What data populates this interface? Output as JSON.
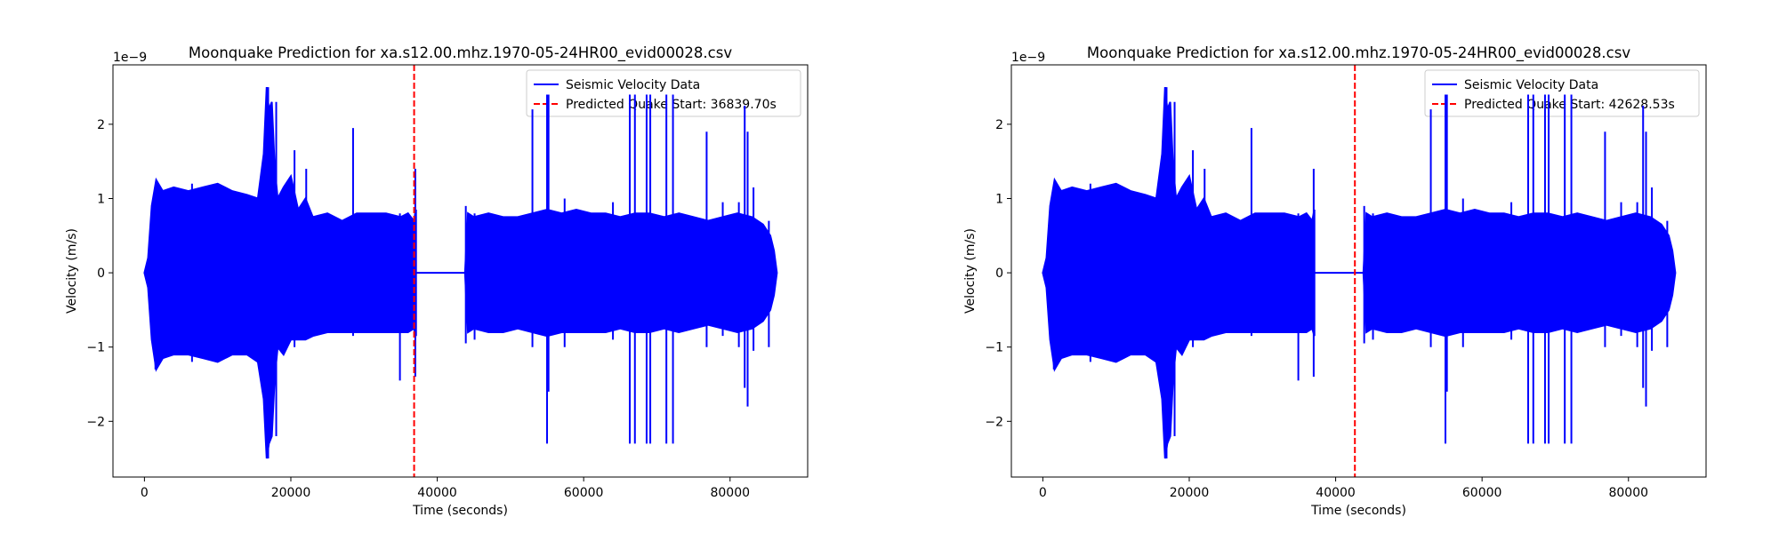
{
  "chart_data": [
    {
      "type": "line",
      "title": "Moonquake Prediction for xa.s12.00.mhz.1970-05-24HR00_evid00028.csv",
      "xlabel": "Time (seconds)",
      "ylabel": "Velocity (m/s)",
      "y_scale_offset": "1e−9",
      "xlim": [
        -4300,
        90600
      ],
      "ylim": [
        -2.75,
        2.8
      ],
      "xticks": [
        0,
        20000,
        40000,
        60000,
        80000
      ],
      "xtick_labels": [
        "0",
        "20000",
        "40000",
        "60000",
        "80000"
      ],
      "yticks": [
        -2,
        -1,
        0,
        1,
        2
      ],
      "ytick_labels": [
        "−2",
        "−1",
        "0",
        "1",
        "2"
      ],
      "grid": false,
      "legend_position": "top-right",
      "series": [
        {
          "name": "Seismic Velocity Data",
          "color": "#0000ff",
          "style": "solid",
          "envelope_segments": [
            {
              "x": [
                0,
                500,
                1000,
                1600,
                2500,
                4000,
                6000,
                8000,
                10000,
                12000,
                14000,
                15500,
                16300,
                16700,
                17000,
                17400,
                17800,
                18200,
                19000,
                20000,
                21000,
                22000,
                23000,
                25000,
                27000,
                29000,
                31000,
                33000,
                35000,
                36000,
                36800,
                37100
              ],
              "ymax": [
                0,
                0.2,
                0.9,
                1.25,
                1.1,
                1.15,
                1.1,
                1.15,
                1.2,
                1.1,
                1.05,
                1.0,
                1.6,
                2.5,
                2.2,
                2.3,
                1.4,
                1.0,
                1.15,
                1.3,
                0.85,
                1.0,
                0.75,
                0.8,
                0.7,
                0.8,
                0.8,
                0.8,
                0.75,
                0.8,
                0.7,
                0.85
              ],
              "ymin": [
                0,
                -0.2,
                -0.9,
                -1.3,
                -1.15,
                -1.1,
                -1.1,
                -1.15,
                -1.2,
                -1.1,
                -1.1,
                -1.2,
                -1.7,
                -2.5,
                -2.3,
                -2.2,
                -1.4,
                -1.0,
                -1.1,
                -0.9,
                -0.9,
                -0.9,
                -0.85,
                -0.8,
                -0.8,
                -0.8,
                -0.8,
                -0.8,
                -0.8,
                -0.8,
                -0.75,
                -0.85
              ]
            },
            {
              "x": [
                37100,
                43800
              ],
              "ymax": [
                0,
                0
              ],
              "ymin": [
                0,
                0
              ]
            },
            {
              "x": [
                43800,
                44200,
                45000,
                47000,
                49000,
                51000,
                53000,
                55000,
                57000,
                59000,
                61000,
                63000,
                65000,
                67000,
                69000,
                71000,
                73000,
                75000,
                77000,
                79000,
                81000,
                83000,
                84500,
                85500,
                86000,
                86400
              ],
              "ymax": [
                0,
                0.8,
                0.75,
                0.8,
                0.75,
                0.75,
                0.8,
                0.85,
                0.8,
                0.85,
                0.8,
                0.8,
                0.75,
                0.8,
                0.8,
                0.75,
                0.8,
                0.75,
                0.7,
                0.75,
                0.8,
                0.75,
                0.65,
                0.5,
                0.3,
                0
              ],
              "ymin": [
                0,
                -0.8,
                -0.75,
                -0.8,
                -0.8,
                -0.75,
                -0.8,
                -0.85,
                -0.8,
                -0.8,
                -0.8,
                -0.8,
                -0.75,
                -0.8,
                -0.8,
                -0.75,
                -0.8,
                -0.75,
                -0.7,
                -0.75,
                -0.8,
                -0.75,
                -0.65,
                -0.5,
                -0.3,
                0
              ]
            }
          ],
          "spikes": [
            {
              "x": 1500,
              "ymax": 0.75,
              "ymin": -1.3
            },
            {
              "x": 6500,
              "ymax": 1.2,
              "ymin": -1.2
            },
            {
              "x": 16900,
              "ymax": 2.5,
              "ymin": -2.5
            },
            {
              "x": 18000,
              "ymax": 2.3,
              "ymin": -2.2
            },
            {
              "x": 20500,
              "ymax": 1.65,
              "ymin": -1.0
            },
            {
              "x": 22100,
              "ymax": 1.4,
              "ymin": -0.9
            },
            {
              "x": 28500,
              "ymax": 1.95,
              "ymin": -0.85
            },
            {
              "x": 34900,
              "ymax": 0.8,
              "ymin": -1.45
            },
            {
              "x": 37000,
              "ymax": 1.4,
              "ymin": -1.4
            },
            {
              "x": 43900,
              "ymax": 0.9,
              "ymin": -0.95
            },
            {
              "x": 45100,
              "ymax": 0.8,
              "ymin": -0.9
            },
            {
              "x": 53000,
              "ymax": 2.2,
              "ymin": -1.0
            },
            {
              "x": 55000,
              "ymax": 2.4,
              "ymin": -2.3
            },
            {
              "x": 55200,
              "ymax": 2.4,
              "ymin": -1.6
            },
            {
              "x": 57400,
              "ymax": 1.0,
              "ymin": -1.0
            },
            {
              "x": 64000,
              "ymax": 0.95,
              "ymin": -0.9
            },
            {
              "x": 66300,
              "ymax": 2.4,
              "ymin": -2.3
            },
            {
              "x": 67000,
              "ymax": 2.4,
              "ymin": -2.3
            },
            {
              "x": 68600,
              "ymax": 2.4,
              "ymin": -2.3
            },
            {
              "x": 69100,
              "ymax": 2.4,
              "ymin": -2.3
            },
            {
              "x": 71300,
              "ymax": 2.4,
              "ymin": -2.3
            },
            {
              "x": 72200,
              "ymax": 2.4,
              "ymin": -2.3
            },
            {
              "x": 76800,
              "ymax": 1.9,
              "ymin": -1.0
            },
            {
              "x": 79000,
              "ymax": 0.95,
              "ymin": -0.85
            },
            {
              "x": 81200,
              "ymax": 0.95,
              "ymin": -1.0
            },
            {
              "x": 82000,
              "ymax": 2.25,
              "ymin": -1.55
            },
            {
              "x": 82400,
              "ymax": 1.9,
              "ymin": -1.8
            },
            {
              "x": 83200,
              "ymax": 1.15,
              "ymin": -1.05
            },
            {
              "x": 85300,
              "ymax": 0.7,
              "ymin": -1.0
            }
          ]
        },
        {
          "name": "Predicted Quake Start: 36839.70s",
          "color": "#ff0000",
          "style": "dashed",
          "vline_x": 36839.7
        }
      ]
    },
    {
      "type": "line",
      "title": "Moonquake Prediction for xa.s12.00.mhz.1970-05-24HR00_evid00028.csv",
      "xlabel": "Time (seconds)",
      "ylabel": "Velocity (m/s)",
      "y_scale_offset": "1e−9",
      "xlim": [
        -4300,
        90600
      ],
      "ylim": [
        -2.75,
        2.8
      ],
      "xticks": [
        0,
        20000,
        40000,
        60000,
        80000
      ],
      "xtick_labels": [
        "0",
        "20000",
        "40000",
        "60000",
        "80000"
      ],
      "yticks": [
        -2,
        -1,
        0,
        1,
        2
      ],
      "ytick_labels": [
        "−2",
        "−1",
        "0",
        "1",
        "2"
      ],
      "grid": false,
      "legend_position": "top-right",
      "series": [
        {
          "name": "Seismic Velocity Data",
          "color": "#0000ff",
          "style": "solid",
          "envelope_segments": [
            {
              "x": [
                0,
                500,
                1000,
                1600,
                2500,
                4000,
                6000,
                8000,
                10000,
                12000,
                14000,
                15500,
                16300,
                16700,
                17000,
                17400,
                17800,
                18200,
                19000,
                20000,
                21000,
                22000,
                23000,
                25000,
                27000,
                29000,
                31000,
                33000,
                35000,
                36000,
                36800,
                37100
              ],
              "ymax": [
                0,
                0.2,
                0.9,
                1.25,
                1.1,
                1.15,
                1.1,
                1.15,
                1.2,
                1.1,
                1.05,
                1.0,
                1.6,
                2.5,
                2.2,
                2.3,
                1.4,
                1.0,
                1.15,
                1.3,
                0.85,
                1.0,
                0.75,
                0.8,
                0.7,
                0.8,
                0.8,
                0.8,
                0.75,
                0.8,
                0.7,
                0.85
              ],
              "ymin": [
                0,
                -0.2,
                -0.9,
                -1.3,
                -1.15,
                -1.1,
                -1.1,
                -1.15,
                -1.2,
                -1.1,
                -1.1,
                -1.2,
                -1.7,
                -2.5,
                -2.3,
                -2.2,
                -1.4,
                -1.0,
                -1.1,
                -0.9,
                -0.9,
                -0.9,
                -0.85,
                -0.8,
                -0.8,
                -0.8,
                -0.8,
                -0.8,
                -0.8,
                -0.8,
                -0.75,
                -0.85
              ]
            },
            {
              "x": [
                37100,
                43800
              ],
              "ymax": [
                0,
                0
              ],
              "ymin": [
                0,
                0
              ]
            },
            {
              "x": [
                43800,
                44200,
                45000,
                47000,
                49000,
                51000,
                53000,
                55000,
                57000,
                59000,
                61000,
                63000,
                65000,
                67000,
                69000,
                71000,
                73000,
                75000,
                77000,
                79000,
                81000,
                83000,
                84500,
                85500,
                86000,
                86400
              ],
              "ymax": [
                0,
                0.8,
                0.75,
                0.8,
                0.75,
                0.75,
                0.8,
                0.85,
                0.8,
                0.85,
                0.8,
                0.8,
                0.75,
                0.8,
                0.8,
                0.75,
                0.8,
                0.75,
                0.7,
                0.75,
                0.8,
                0.75,
                0.65,
                0.5,
                0.3,
                0
              ],
              "ymin": [
                0,
                -0.8,
                -0.75,
                -0.8,
                -0.8,
                -0.75,
                -0.8,
                -0.85,
                -0.8,
                -0.8,
                -0.8,
                -0.8,
                -0.75,
                -0.8,
                -0.8,
                -0.75,
                -0.8,
                -0.75,
                -0.7,
                -0.75,
                -0.8,
                -0.75,
                -0.65,
                -0.5,
                -0.3,
                0
              ]
            }
          ],
          "spikes": [
            {
              "x": 1500,
              "ymax": 0.75,
              "ymin": -1.3
            },
            {
              "x": 6500,
              "ymax": 1.2,
              "ymin": -1.2
            },
            {
              "x": 16900,
              "ymax": 2.5,
              "ymin": -2.5
            },
            {
              "x": 18000,
              "ymax": 2.3,
              "ymin": -2.2
            },
            {
              "x": 20500,
              "ymax": 1.65,
              "ymin": -1.0
            },
            {
              "x": 22100,
              "ymax": 1.4,
              "ymin": -0.9
            },
            {
              "x": 28500,
              "ymax": 1.95,
              "ymin": -0.85
            },
            {
              "x": 34900,
              "ymax": 0.8,
              "ymin": -1.45
            },
            {
              "x": 37000,
              "ymax": 1.4,
              "ymin": -1.4
            },
            {
              "x": 43900,
              "ymax": 0.9,
              "ymin": -0.95
            },
            {
              "x": 45100,
              "ymax": 0.8,
              "ymin": -0.9
            },
            {
              "x": 53000,
              "ymax": 2.2,
              "ymin": -1.0
            },
            {
              "x": 55000,
              "ymax": 2.4,
              "ymin": -2.3
            },
            {
              "x": 55200,
              "ymax": 2.4,
              "ymin": -1.6
            },
            {
              "x": 57400,
              "ymax": 1.0,
              "ymin": -1.0
            },
            {
              "x": 64000,
              "ymax": 0.95,
              "ymin": -0.9
            },
            {
              "x": 66300,
              "ymax": 2.4,
              "ymin": -2.3
            },
            {
              "x": 67000,
              "ymax": 2.4,
              "ymin": -2.3
            },
            {
              "x": 68600,
              "ymax": 2.4,
              "ymin": -2.3
            },
            {
              "x": 69100,
              "ymax": 2.4,
              "ymin": -2.3
            },
            {
              "x": 71300,
              "ymax": 2.4,
              "ymin": -2.3
            },
            {
              "x": 72200,
              "ymax": 2.4,
              "ymin": -2.3
            },
            {
              "x": 76800,
              "ymax": 1.9,
              "ymin": -1.0
            },
            {
              "x": 79000,
              "ymax": 0.95,
              "ymin": -0.85
            },
            {
              "x": 81200,
              "ymax": 0.95,
              "ymin": -1.0
            },
            {
              "x": 82000,
              "ymax": 2.25,
              "ymin": -1.55
            },
            {
              "x": 82400,
              "ymax": 1.9,
              "ymin": -1.8
            },
            {
              "x": 83200,
              "ymax": 1.15,
              "ymin": -1.05
            },
            {
              "x": 85300,
              "ymax": 0.7,
              "ymin": -1.0
            }
          ]
        },
        {
          "name": "Predicted Quake Start: 42628.53s",
          "color": "#ff0000",
          "style": "dashed",
          "vline_x": 42628.53
        }
      ]
    }
  ]
}
